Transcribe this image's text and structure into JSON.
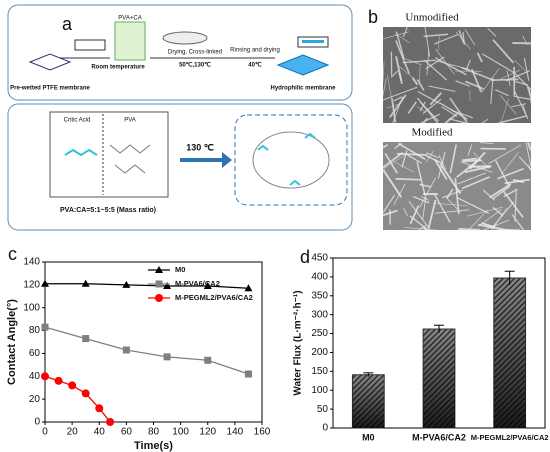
{
  "panels": {
    "a": {
      "label": "a",
      "pva_ca": "PVA+CA",
      "room_temp": "Room temperature",
      "drying": "Drying, Cross-linked",
      "drying_temp": "50℃,130℃",
      "rinsing": "Rinsing and drying",
      "rinsing_temp": "40℃",
      "prewetted": "Pre-wetted PTFE membrane",
      "hydrophilic": "Hydrophilic membrane",
      "citric": "Critic Acid",
      "pva": "PVA",
      "reaction_temp": "130 ℃",
      "ratio": "PVA:CA=5:1~5:5 (Mass ratio)"
    },
    "b": {
      "label": "b",
      "unmodified": "Unmodified",
      "modified": "Modified"
    }
  },
  "chart_data": [
    {
      "type": "line",
      "panel_label": "c",
      "x_label": "Time(s)",
      "y_label": "Contact Angle(°)",
      "xlim": [
        0,
        160
      ],
      "xticks": [
        0,
        20,
        40,
        60,
        80,
        100,
        120,
        140,
        160
      ],
      "ylim": [
        0,
        140
      ],
      "yticks": [
        0,
        20,
        40,
        60,
        80,
        100,
        120,
        140
      ],
      "series": [
        {
          "name": "M0",
          "color": "#000000",
          "marker": "triangle",
          "x": [
            0,
            30,
            60,
            90,
            120,
            150
          ],
          "values": [
            121,
            121,
            120,
            119,
            119,
            117
          ]
        },
        {
          "name": "M-PVA6/CA2",
          "color": "#7f7f7f",
          "marker": "square",
          "x": [
            0,
            30,
            60,
            90,
            120,
            150
          ],
          "values": [
            83,
            73,
            63,
            57,
            54,
            42
          ]
        },
        {
          "name": "M-PEGML2/PVA6/CA2",
          "color": "#ff0000",
          "marker": "circle",
          "x": [
            0,
            10,
            20,
            30,
            40,
            48
          ],
          "values": [
            40,
            36,
            32,
            25,
            12,
            0
          ]
        }
      ]
    },
    {
      "type": "bar",
      "panel_label": "d",
      "y_label": "Water Flux (L·m⁻²·h⁻¹)",
      "color": "#333333",
      "categories": [
        "M0",
        "M-PVA6/CA2",
        "M-PEGML2/PVA6/CA2"
      ],
      "values": [
        141,
        262,
        397
      ],
      "errors": [
        5,
        10,
        18
      ],
      "ylim": [
        0,
        450
      ],
      "yticks": [
        0,
        50,
        100,
        150,
        200,
        250,
        300,
        350,
        400,
        450
      ]
    }
  ]
}
